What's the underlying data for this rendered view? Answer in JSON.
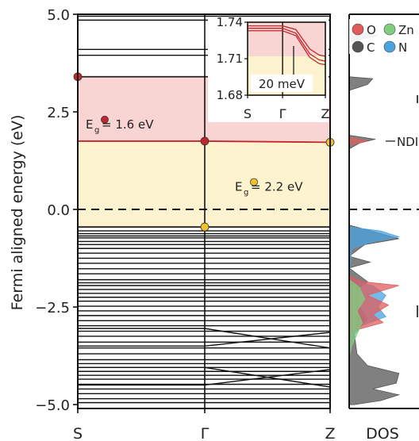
{
  "chart_data": [
    {
      "type": "line",
      "title": "",
      "xlabel": "",
      "ylabel": "Fermi aligned energy (eV)",
      "ylim": [
        -5.1,
        5.0
      ],
      "y_ticks": [
        5.0,
        2.5,
        0.0,
        -2.5,
        -5.0
      ],
      "y_tick_labels": [
        "5.0",
        "2.5",
        "0.0",
        "−2.5",
        "−5.0"
      ],
      "x_ticks": [
        "S",
        "Γ",
        "Z"
      ],
      "fermi_level": 0.0,
      "grid": false,
      "highlighted_bands": [
        {
          "name": "band-upper",
          "values": [
            3.4,
            3.4,
            3.4
          ],
          "color": "#222222"
        },
        {
          "name": "band-red",
          "values": [
            1.75,
            1.75,
            1.72
          ],
          "color": "#c1272d"
        },
        {
          "name": "band-top-vb",
          "values": [
            -0.45,
            -0.45,
            -0.45
          ],
          "color": "#222222"
        }
      ],
      "markers": [
        {
          "k": "S",
          "energy": 3.4,
          "color": "#c1272d"
        },
        {
          "k": "Γ",
          "energy": 1.75,
          "color": "#c1272d"
        },
        {
          "k": "Z",
          "energy": 1.72,
          "color": "#f2c12e"
        },
        {
          "k": "Γ",
          "energy": -0.45,
          "color": "#f2c12e"
        }
      ],
      "shaded_regions": [
        {
          "from": 1.75,
          "to": 3.4,
          "color": "#f8d4d2"
        },
        {
          "from": -0.45,
          "to": 1.75,
          "color": "#fdf3cf"
        }
      ],
      "annotations": [
        {
          "symbol": "E",
          "subscript": "g",
          "text": "= 1.6 eV",
          "energy": 2.2,
          "marker_color": "#c1272d"
        },
        {
          "symbol": "E",
          "subscript": "g",
          "text": "= 2.2 eV",
          "energy": 0.6,
          "marker_color": "#f2c12e"
        }
      ],
      "conduction_bands_flat": [
        4.95,
        4.85,
        4.1,
        3.95
      ],
      "valence_bands_flat": [
        -0.55,
        -0.62,
        -0.68,
        -0.73,
        -0.82,
        -0.9,
        -1.0,
        -1.12,
        -1.25,
        -1.38,
        -1.52,
        -1.65,
        -1.8,
        -1.88,
        -1.95,
        -2.05,
        -2.15,
        -2.25,
        -2.35,
        -2.48,
        -2.6,
        -2.72,
        -2.85,
        -2.98,
        -3.12,
        -3.25,
        -3.4,
        -3.55,
        -3.7,
        -3.85,
        -3.95,
        -4.05,
        -4.15,
        -4.25,
        -4.35,
        -4.48,
        -4.6,
        -4.72,
        -4.85,
        -4.95
      ],
      "valence_bands_dispersive": [
        {
          "values": [
            -3.05,
            -3.05,
            -3.55
          ]
        },
        {
          "values": [
            -3.5,
            -3.5,
            -3.15
          ]
        },
        {
          "values": [
            -4.05,
            -4.05,
            -4.55
          ]
        },
        {
          "values": [
            -4.5,
            -4.5,
            -4.1
          ]
        }
      ]
    },
    {
      "type": "line",
      "title": "",
      "ylim": [
        1.68,
        1.74
      ],
      "y_ticks": [
        1.74,
        1.71,
        1.68
      ],
      "y_tick_labels": [
        "1.74",
        "1.71",
        "1.68"
      ],
      "x_ticks": [
        "S",
        "Γ",
        "Z"
      ],
      "scale_bar_label": "20 meV",
      "bands": [
        {
          "values": [
            1.737,
            1.737,
            1.734,
            1.718,
            1.713,
            1.712
          ],
          "color": "#c1272d"
        },
        {
          "values": [
            1.735,
            1.735,
            1.731,
            1.714,
            1.709,
            1.708
          ],
          "color": "#c1272d"
        },
        {
          "values": [
            1.733,
            1.733,
            1.729,
            1.711,
            1.706,
            1.705
          ],
          "color": "#c1272d"
        }
      ],
      "band_x": [
        0,
        0.45,
        0.62,
        0.8,
        0.92,
        1.0
      ],
      "shaded_regions": [
        {
          "from": 1.712,
          "to": 1.74,
          "color": "#f8d4d2"
        },
        {
          "from": 1.68,
          "to": 1.712,
          "color": "#fdf3cf"
        }
      ]
    },
    {
      "type": "area",
      "xlabel": "DOS",
      "ylim": [
        -5.1,
        5.0
      ],
      "legend": {
        "placement": "top",
        "entries": [
          {
            "label": "O",
            "color": "#e05c5c"
          },
          {
            "label": "Zn",
            "color": "#7fcf7f"
          },
          {
            "label": "C",
            "color": "#555555"
          },
          {
            "label": "N",
            "color": "#4aa3df"
          }
        ]
      },
      "annotations": [
        {
          "text": "NDI",
          "energy": 1.75
        }
      ],
      "series": [
        {
          "name": "C",
          "color": "#555555",
          "points": [
            [
              4.6,
              0.0
            ],
            [
              4.45,
              0.55
            ],
            [
              4.3,
              0.0
            ],
            [
              3.4,
              0.0
            ],
            [
              3.35,
              0.45
            ],
            [
              3.2,
              0.35
            ],
            [
              3.05,
              0.0
            ],
            [
              1.9,
              0.0
            ],
            [
              1.8,
              0.5
            ],
            [
              1.7,
              0.2
            ],
            [
              1.55,
              0.0
            ],
            [
              -0.4,
              0.0
            ],
            [
              -0.6,
              0.55
            ],
            [
              -0.75,
              0.95
            ],
            [
              -0.9,
              0.3
            ],
            [
              -1.2,
              0.0
            ],
            [
              -1.35,
              0.4
            ],
            [
              -1.5,
              0.0
            ],
            [
              -1.85,
              0.35
            ],
            [
              -2.0,
              0.2
            ],
            [
              -2.4,
              0.15
            ],
            [
              -2.8,
              0.35
            ],
            [
              -3.2,
              0.1
            ],
            [
              -3.7,
              0.15
            ],
            [
              -4.0,
              0.35
            ],
            [
              -4.2,
              0.95
            ],
            [
              -4.45,
              0.9
            ],
            [
              -4.6,
              0.45
            ],
            [
              -4.75,
              0.95
            ],
            [
              -4.9,
              0.6
            ],
            [
              -5.0,
              0.1
            ]
          ]
        },
        {
          "name": "N",
          "color": "#4aa3df",
          "points": [
            [
              -0.45,
              0.0
            ],
            [
              -0.55,
              0.6
            ],
            [
              -0.7,
              0.95
            ],
            [
              -0.85,
              0.4
            ],
            [
              -1.0,
              0.05
            ],
            [
              -1.8,
              0.0
            ],
            [
              -1.95,
              0.45
            ],
            [
              -2.2,
              0.7
            ],
            [
              -2.5,
              0.55
            ],
            [
              -2.75,
              0.7
            ],
            [
              -3.0,
              0.2
            ],
            [
              -3.3,
              0.05
            ]
          ]
        },
        {
          "name": "O",
          "color": "#e05c5c",
          "points": [
            [
              1.85,
              0.0
            ],
            [
              1.75,
              0.35
            ],
            [
              1.65,
              0.0
            ],
            [
              -1.7,
              0.0
            ],
            [
              -1.85,
              0.25
            ],
            [
              -1.95,
              0.95
            ],
            [
              -2.2,
              0.35
            ],
            [
              -2.45,
              0.75
            ],
            [
              -2.7,
              0.45
            ],
            [
              -2.9,
              0.65
            ],
            [
              -3.1,
              0.1
            ],
            [
              -3.4,
              0.0
            ]
          ]
        },
        {
          "name": "Zn",
          "color": "#7fcf7f",
          "points": [
            [
              -1.8,
              0.0
            ],
            [
              -2.0,
              0.2
            ],
            [
              -2.3,
              0.3
            ],
            [
              -2.6,
              0.15
            ],
            [
              -2.9,
              0.25
            ],
            [
              -3.2,
              0.15
            ],
            [
              -3.5,
              0.05
            ],
            [
              -3.8,
              0.0
            ]
          ]
        }
      ]
    }
  ]
}
